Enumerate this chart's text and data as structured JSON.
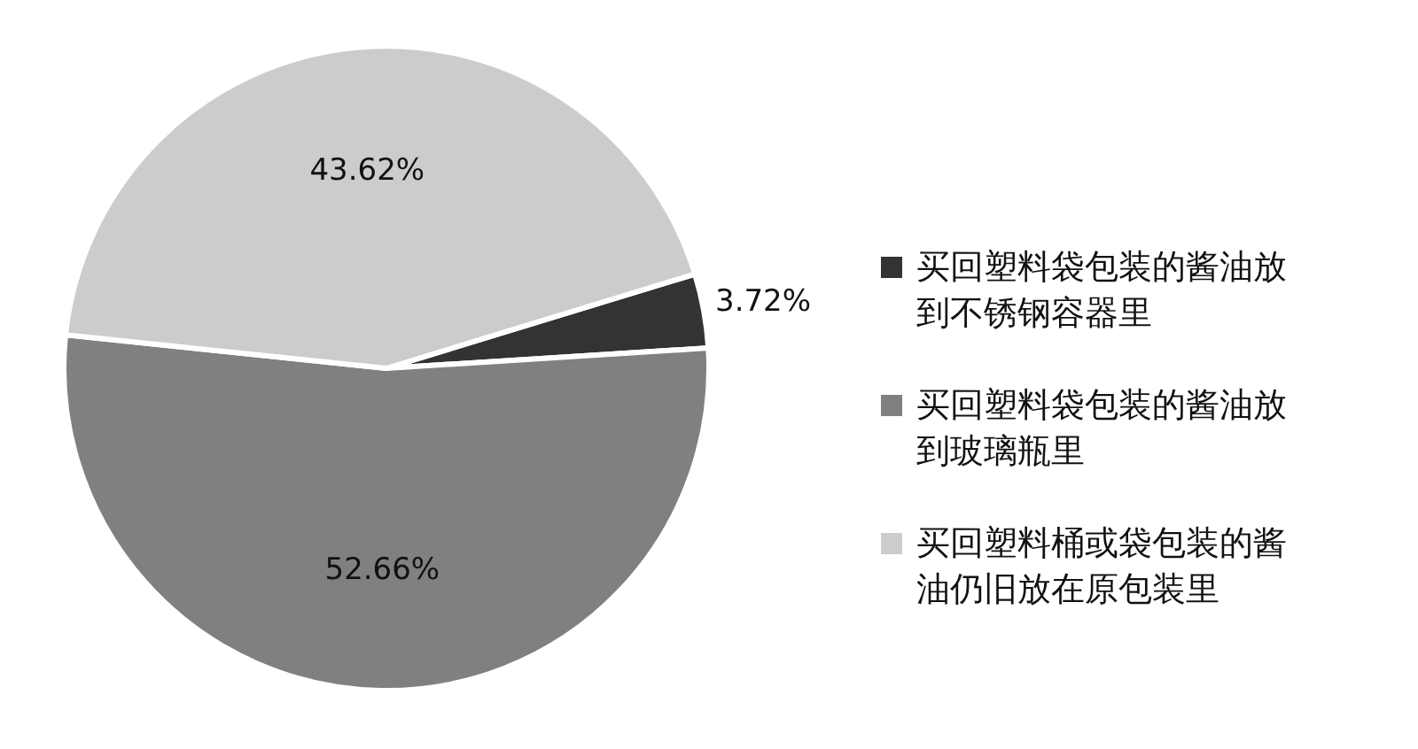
{
  "chart_data": {
    "type": "pie",
    "categories": [
      "买回塑料袋包装的酱油放到不锈钢容器里",
      "买回塑料袋包装的酱油放到玻璃瓶里",
      "买回塑料桶或袋包装的酱油仍旧放在原包装里"
    ],
    "values": [
      3.72,
      52.66,
      43.62
    ],
    "colors": [
      "#333333",
      "#808080",
      "#cccccc"
    ],
    "value_labels": [
      "3.72%",
      "52.66%",
      "43.62%"
    ],
    "legend": "right"
  }
}
